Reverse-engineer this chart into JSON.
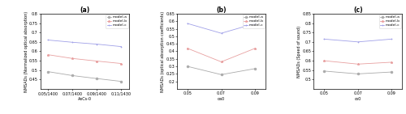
{
  "panel_a": {
    "xlabel": "AoCs-0",
    "ylabel": "NMSADs (Normalized optical absorption)",
    "xticks": [
      0.05,
      0.07,
      0.09,
      0.11
    ],
    "xticklabels": [
      "0.05/1400",
      "0.07/1400",
      "0.09/1400",
      "0.11/1430"
    ],
    "ylim": [
      0.4,
      0.8
    ],
    "yticks": [
      0.45,
      0.5,
      0.55,
      0.6,
      0.65,
      0.7,
      0.75,
      0.8
    ],
    "title": "(a)",
    "series": {
      "model-a": {
        "x": [
          0.05,
          0.07,
          0.09,
          0.11
        ],
        "y": [
          0.492,
          0.471,
          0.455,
          0.44
        ],
        "color": "#aaaaaa",
        "marker": "o",
        "linestyle": "-"
      },
      "model-b": {
        "x": [
          0.05,
          0.07,
          0.09,
          0.11
        ],
        "y": [
          0.582,
          0.562,
          0.548,
          0.535
        ],
        "color": "#e8a0a0",
        "marker": "*",
        "linestyle": "-"
      },
      "model-c": {
        "x": [
          0.05,
          0.07,
          0.09,
          0.11
        ],
        "y": [
          0.66,
          0.648,
          0.638,
          0.625
        ],
        "color": "#a0a0e8",
        "marker": "+",
        "linestyle": "-"
      }
    }
  },
  "panel_b": {
    "xlabel": "oa0",
    "ylabel": "NMSADs (optical absorption coefficients)",
    "xticks": [
      0.05,
      0.07,
      0.09
    ],
    "xticklabels": [
      "0.05",
      "0.07",
      "0.09"
    ],
    "ylim": [
      0.15,
      0.65
    ],
    "yticks": [
      0.2,
      0.25,
      0.3,
      0.35,
      0.4,
      0.45,
      0.5,
      0.55,
      0.6,
      0.65
    ],
    "title": "(b)",
    "series": {
      "model-a": {
        "x": [
          0.05,
          0.07,
          0.09
        ],
        "y": [
          0.3,
          0.245,
          0.285
        ],
        "color": "#aaaaaa",
        "marker": "o",
        "linestyle": "-"
      },
      "model-b": {
        "x": [
          0.05,
          0.07,
          0.09
        ],
        "y": [
          0.42,
          0.33,
          0.42
        ],
        "color": "#e8a0a0",
        "marker": "*",
        "linestyle": "-"
      },
      "model-c": {
        "x": [
          0.05,
          0.07,
          0.09
        ],
        "y": [
          0.585,
          0.52,
          0.585
        ],
        "color": "#a0a0e8",
        "marker": "+",
        "linestyle": "-"
      }
    }
  },
  "panel_c": {
    "xlabel": "cs0",
    "ylabel": "NMSADs (Speed of sound)",
    "xticks": [
      0.05,
      0.07,
      0.09
    ],
    "xticklabels": [
      "0.05",
      "0.07",
      "0.09"
    ],
    "ylim": [
      0.45,
      0.85
    ],
    "yticks": [
      0.5,
      0.55,
      0.6,
      0.65,
      0.7,
      0.75,
      0.8,
      0.85
    ],
    "title": "(c)",
    "series": {
      "model-a": {
        "x": [
          0.05,
          0.07,
          0.09
        ],
        "y": [
          0.545,
          0.53,
          0.54
        ],
        "color": "#aaaaaa",
        "marker": "o",
        "linestyle": "-"
      },
      "model-b": {
        "x": [
          0.05,
          0.07,
          0.09
        ],
        "y": [
          0.6,
          0.582,
          0.592
        ],
        "color": "#e8a0a0",
        "marker": "*",
        "linestyle": "-"
      },
      "model-c": {
        "x": [
          0.05,
          0.07,
          0.09
        ],
        "y": [
          0.715,
          0.7,
          0.715
        ],
        "color": "#a0a0e8",
        "marker": "+",
        "linestyle": "-"
      }
    }
  },
  "legend_labels": [
    "model-a",
    "model-b",
    "model-c"
  ],
  "background_color": "#ffffff",
  "fontsize_tick": 3.5,
  "fontsize_label": 3.5,
  "fontsize_title": 5.5,
  "fontsize_legend": 3.2,
  "linewidth": 0.6,
  "markersize": 2.0
}
